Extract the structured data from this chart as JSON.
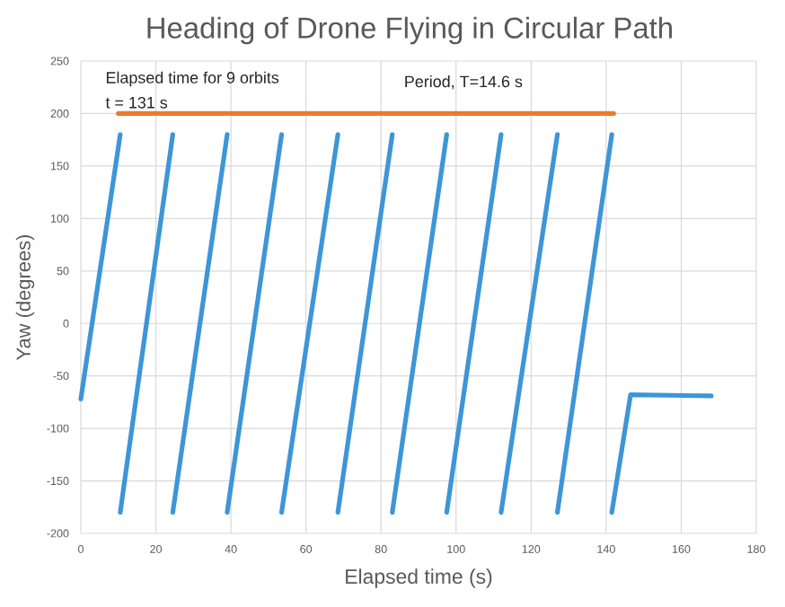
{
  "chart_data": {
    "type": "line",
    "title": "Heading of Drone Flying in Circular Path",
    "xlabel": "Elapsed time (s)",
    "ylabel": "Yaw (degrees)",
    "xlim": [
      0,
      180
    ],
    "ylim": [
      -200,
      250
    ],
    "xticks": [
      0,
      20,
      40,
      60,
      80,
      100,
      120,
      140,
      160,
      180
    ],
    "yticks": [
      -200,
      -150,
      -100,
      -50,
      0,
      50,
      100,
      150,
      200,
      250
    ],
    "grid": true,
    "annotations": [
      "Elapsed time for 9 orbits",
      "t = 131 s",
      "Period, T=14.6 s"
    ],
    "series": [
      {
        "color": "#3c96d7",
        "x": [
          0,
          10.5
        ],
        "values": [
          -72,
          180
        ]
      },
      {
        "color": "#3c96d7",
        "x": [
          10.5,
          24.5
        ],
        "values": [
          -180,
          180
        ]
      },
      {
        "color": "#3c96d7",
        "x": [
          24.5,
          39
        ],
        "values": [
          -180,
          180
        ]
      },
      {
        "color": "#3c96d7",
        "x": [
          39,
          53.5
        ],
        "values": [
          -180,
          180
        ]
      },
      {
        "color": "#3c96d7",
        "x": [
          53.5,
          68.5
        ],
        "values": [
          -180,
          180
        ]
      },
      {
        "color": "#3c96d7",
        "x": [
          68.5,
          83
        ],
        "values": [
          -180,
          180
        ]
      },
      {
        "color": "#3c96d7",
        "x": [
          83,
          97.5
        ],
        "values": [
          -180,
          180
        ]
      },
      {
        "color": "#3c96d7",
        "x": [
          97.5,
          112
        ],
        "values": [
          -180,
          180
        ]
      },
      {
        "color": "#3c96d7",
        "x": [
          112,
          127
        ],
        "values": [
          -180,
          180
        ]
      },
      {
        "color": "#3c96d7",
        "x": [
          127,
          141.5
        ],
        "values": [
          -180,
          180
        ]
      },
      {
        "color": "#3c96d7",
        "x": [
          141.5,
          146.5,
          168
        ],
        "values": [
          -180,
          -68,
          -69
        ]
      },
      {
        "color": "#ee7a2c",
        "x": [
          10,
          142
        ],
        "values": [
          200,
          200
        ]
      }
    ]
  }
}
